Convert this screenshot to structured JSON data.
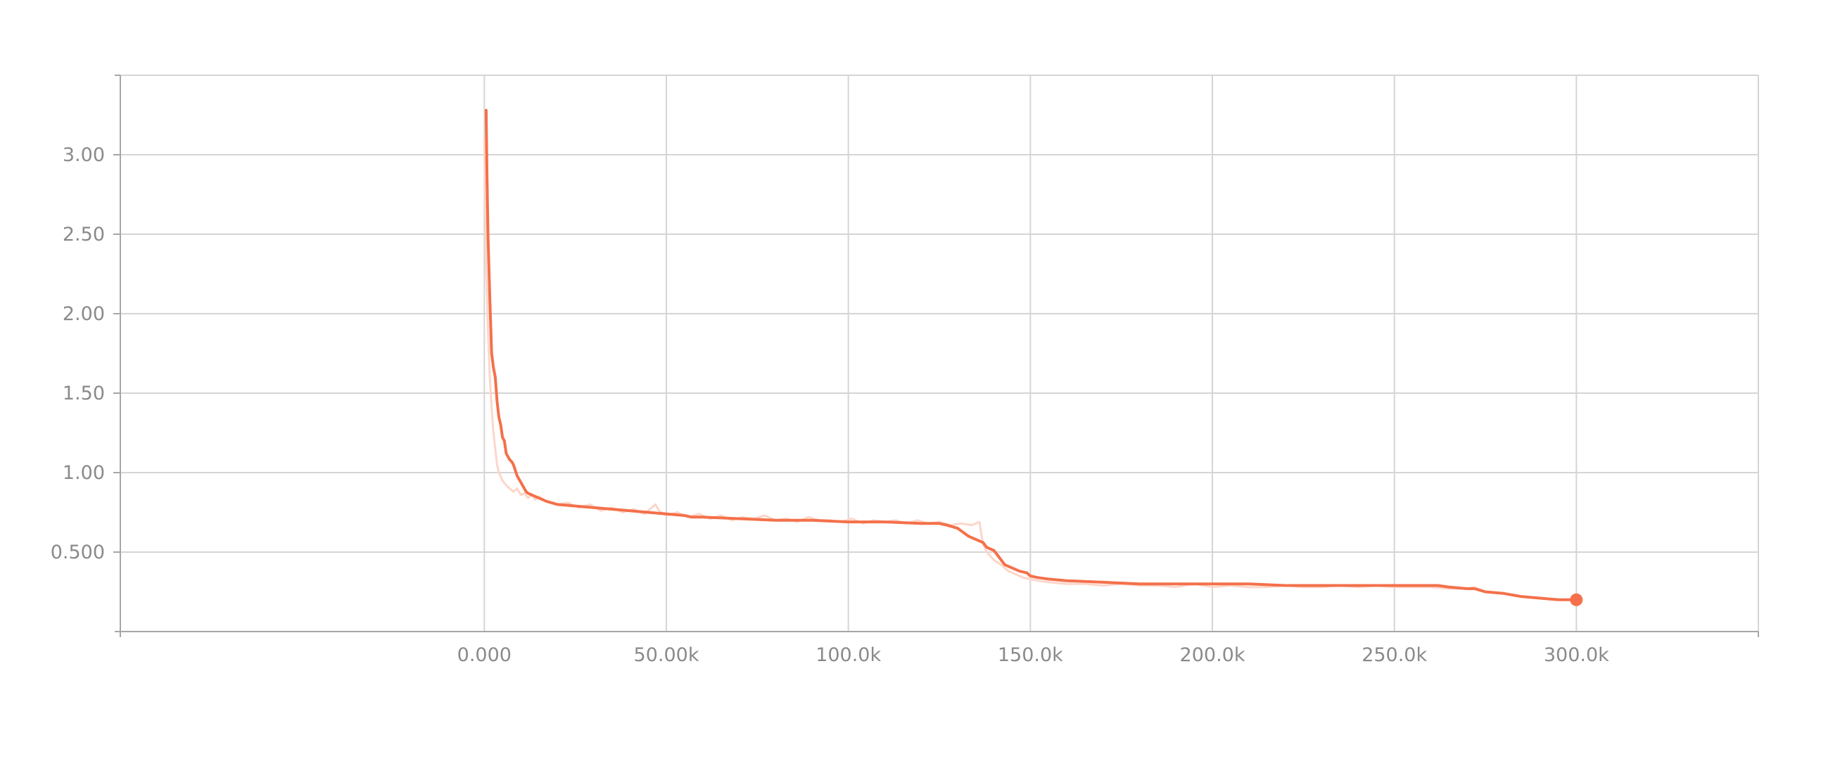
{
  "chart_data": {
    "type": "line",
    "title": "",
    "xlabel": "",
    "ylabel": "",
    "xlim": [
      -100000,
      350000
    ],
    "ylim": [
      0,
      3.5
    ],
    "x_ticks": [
      0,
      50000,
      100000,
      150000,
      200000,
      250000,
      300000
    ],
    "x_tick_labels": [
      "0.000",
      "50.00k",
      "100.0k",
      "150.0k",
      "200.0k",
      "250.0k",
      "300.0k"
    ],
    "y_ticks": [
      0.5,
      1.0,
      1.5,
      2.0,
      2.5,
      3.0
    ],
    "y_tick_labels": [
      "0.500",
      "1.00",
      "1.50",
      "2.00",
      "2.50",
      "3.00"
    ],
    "grid": true,
    "legend": "none",
    "colors": {
      "line": "#f4704a",
      "raw_line": "#fcd6c9",
      "grid": "#d5d5d5",
      "axis": "#a6a6a6"
    },
    "series": [
      {
        "role": "raw",
        "x": [
          0,
          500,
          1000,
          1500,
          2000,
          2500,
          3000,
          3500,
          4000,
          5000,
          6000,
          7000,
          8000,
          9000,
          10000,
          11000,
          12000,
          13000,
          14000,
          15000,
          17000,
          20000,
          23000,
          26000,
          29000,
          32000,
          35000,
          38000,
          41000,
          44000,
          47000,
          48000,
          50000,
          53000,
          56000,
          59000,
          62000,
          65000,
          68000,
          71000,
          74000,
          77000,
          80000,
          83000,
          86000,
          89000,
          92000,
          95000,
          98000,
          101000,
          104000,
          107000,
          110000,
          113000,
          116000,
          119000,
          122000,
          125000,
          128000,
          131000,
          134000,
          136000,
          137000,
          138000,
          140000,
          142000,
          144000,
          146000,
          148000,
          150000,
          152000,
          155000,
          160000,
          165000,
          170000,
          175000,
          180000,
          185000,
          190000,
          195000,
          200000,
          205000,
          210000,
          215000,
          220000,
          225000,
          230000,
          235000,
          240000,
          245000,
          250000,
          255000,
          260000,
          265000,
          270000,
          272000,
          275000,
          280000,
          285000,
          290000,
          295000,
          300000
        ],
        "y": [
          3.1,
          2.3,
          1.9,
          1.6,
          1.4,
          1.25,
          1.15,
          1.05,
          1.0,
          0.95,
          0.92,
          0.9,
          0.88,
          0.9,
          0.86,
          0.87,
          0.84,
          0.86,
          0.83,
          0.85,
          0.82,
          0.8,
          0.81,
          0.78,
          0.8,
          0.76,
          0.78,
          0.75,
          0.77,
          0.74,
          0.8,
          0.76,
          0.73,
          0.75,
          0.72,
          0.74,
          0.71,
          0.73,
          0.7,
          0.72,
          0.71,
          0.73,
          0.7,
          0.71,
          0.69,
          0.72,
          0.7,
          0.7,
          0.69,
          0.71,
          0.68,
          0.7,
          0.69,
          0.7,
          0.68,
          0.7,
          0.68,
          0.69,
          0.67,
          0.68,
          0.67,
          0.69,
          0.55,
          0.5,
          0.45,
          0.42,
          0.38,
          0.36,
          0.34,
          0.33,
          0.32,
          0.31,
          0.3,
          0.3,
          0.29,
          0.3,
          0.29,
          0.29,
          0.28,
          0.3,
          0.28,
          0.29,
          0.28,
          0.28,
          0.29,
          0.28,
          0.28,
          0.29,
          0.28,
          0.29,
          0.28,
          0.28,
          0.28,
          0.27,
          0.27,
          0.28,
          0.25,
          0.24,
          0.22,
          0.21,
          0.2,
          0.2
        ]
      },
      {
        "role": "smoothed",
        "x": [
          500,
          700,
          1000,
          1500,
          2000,
          2500,
          3000,
          3500,
          4000,
          4500,
          5000,
          5500,
          6000,
          6500,
          7000,
          7500,
          8000,
          9000,
          10000,
          11000,
          11500,
          12000,
          13000,
          14000,
          15000,
          17000,
          20000,
          25000,
          30000,
          35000,
          40000,
          45000,
          50000,
          55000,
          57000,
          60000,
          70000,
          80000,
          90000,
          100000,
          110000,
          120000,
          125000,
          127000,
          130000,
          133000,
          135000,
          137000,
          138000,
          139000,
          140000,
          141000,
          142000,
          143000,
          145000,
          147000,
          149000,
          150000,
          152000,
          155000,
          160000,
          170000,
          180000,
          190000,
          200000,
          210000,
          220000,
          230000,
          240000,
          250000,
          255000,
          260000,
          262000,
          265000,
          270000,
          272000,
          275000,
          280000,
          285000,
          290000,
          295000,
          300000
        ],
        "y": [
          3.28,
          2.9,
          2.5,
          2.1,
          1.75,
          1.66,
          1.6,
          1.45,
          1.35,
          1.3,
          1.22,
          1.2,
          1.12,
          1.1,
          1.08,
          1.07,
          1.05,
          0.98,
          0.94,
          0.9,
          0.88,
          0.87,
          0.86,
          0.85,
          0.84,
          0.82,
          0.8,
          0.79,
          0.78,
          0.77,
          0.76,
          0.75,
          0.74,
          0.73,
          0.72,
          0.72,
          0.71,
          0.7,
          0.7,
          0.69,
          0.69,
          0.68,
          0.68,
          0.67,
          0.65,
          0.6,
          0.58,
          0.56,
          0.53,
          0.52,
          0.51,
          0.48,
          0.45,
          0.42,
          0.4,
          0.38,
          0.37,
          0.35,
          0.34,
          0.33,
          0.32,
          0.31,
          0.3,
          0.3,
          0.3,
          0.3,
          0.29,
          0.29,
          0.29,
          0.29,
          0.29,
          0.29,
          0.29,
          0.28,
          0.27,
          0.27,
          0.25,
          0.24,
          0.22,
          0.21,
          0.2,
          0.2
        ]
      }
    ]
  }
}
